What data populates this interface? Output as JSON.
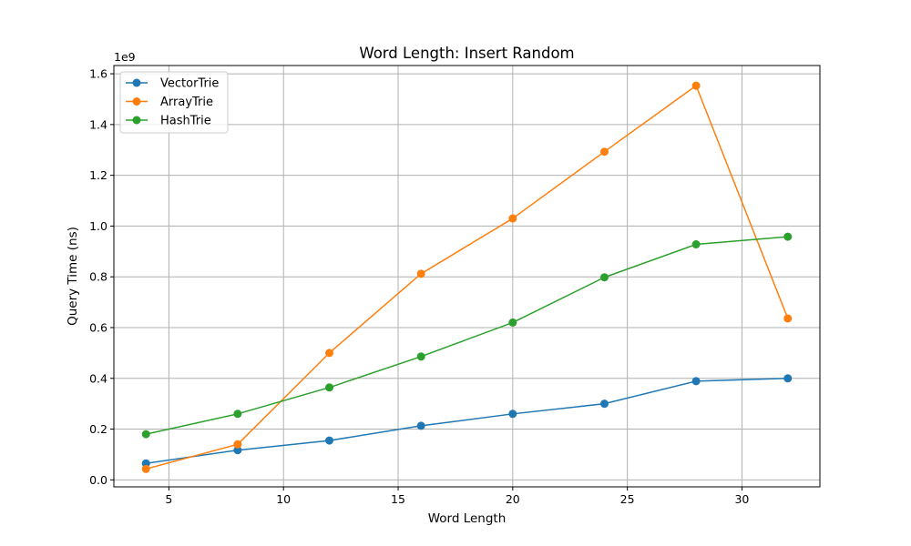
{
  "chart_data": {
    "type": "line",
    "title": "Word Length: Insert Random",
    "xlabel": "Word Length",
    "ylabel": "Query Time (ns)",
    "y_scale_label": "1e9",
    "xlim": [
      2.6,
      33.4
    ],
    "ylim": [
      -0.0275,
      1.6325
    ],
    "x_ticks": [
      5,
      10,
      15,
      20,
      25,
      30
    ],
    "y_ticks": [
      0.0,
      0.2,
      0.4,
      0.6,
      0.8,
      1.0,
      1.2,
      1.4,
      1.6
    ],
    "y_tick_labels": [
      "0.0",
      "0.2",
      "0.4",
      "0.6",
      "0.8",
      "1.0",
      "1.2",
      "1.4",
      "1.6"
    ],
    "grid": true,
    "legend_position": "top-left",
    "x": [
      4,
      8,
      12,
      16,
      20,
      24,
      28,
      32
    ],
    "series": [
      {
        "name": "VectorTrie",
        "color": "#1f77b4",
        "values": [
          0.065,
          0.117,
          0.155,
          0.213,
          0.26,
          0.3,
          0.389,
          0.4
        ]
      },
      {
        "name": "ArrayTrie",
        "color": "#ff7f0e",
        "values": [
          0.043,
          0.14,
          0.5,
          0.812,
          1.03,
          1.293,
          1.553,
          0.636
        ]
      },
      {
        "name": "HashTrie",
        "color": "#2ca02c",
        "values": [
          0.18,
          0.26,
          0.364,
          0.486,
          0.62,
          0.798,
          0.928,
          0.958
        ]
      }
    ]
  }
}
